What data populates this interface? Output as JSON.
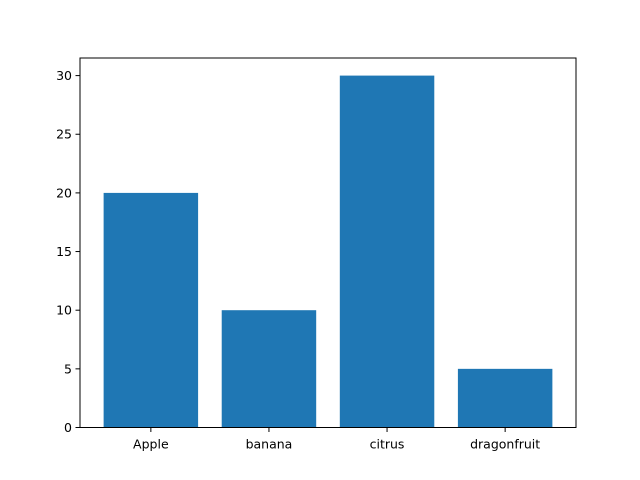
{
  "chart_data": {
    "type": "bar",
    "title": "",
    "xlabel": "",
    "ylabel": "",
    "categories": [
      "Apple",
      "banana",
      "citrus",
      "dragonfruit"
    ],
    "values": [
      20,
      10,
      30,
      5
    ],
    "ylim": [
      0,
      31.5
    ],
    "yticks": [
      0,
      5,
      10,
      15,
      20,
      25,
      30
    ],
    "grid": false,
    "legend": "none",
    "bar_color": "#1f77b4"
  }
}
